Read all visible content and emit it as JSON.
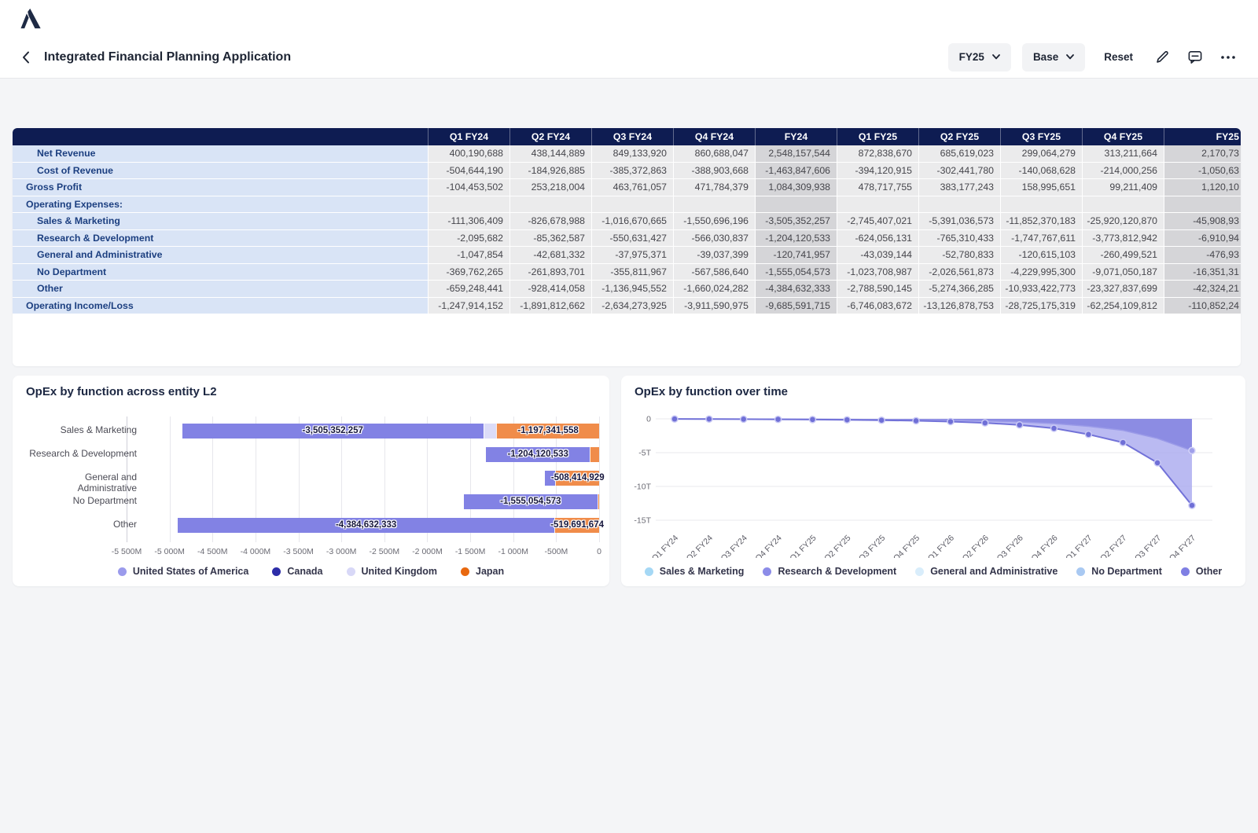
{
  "app": {
    "logo": "anaplan-logo"
  },
  "title_bar": {
    "title": "Integrated Financial Planning Application",
    "period_selector": "FY25",
    "version_selector": "Base",
    "reset_label": "Reset"
  },
  "colors": {
    "header_navy": "#0e1c52",
    "label_blue_bg": "#d9e4f6",
    "label_text": "#1c3f80",
    "quarter_cell_bg": "#ebebec",
    "year_cell_bg": "#d5d5d8",
    "usa_purple": "#8282e4",
    "japan_orange": "#f08c4a",
    "uk_lavender": "#dcdcf8",
    "canada_navy": "#2d2da8",
    "line_purple": "#7272d8"
  },
  "table": {
    "columns": [
      {
        "label": "Q1 FY24",
        "type": "quarter"
      },
      {
        "label": "Q2 FY24",
        "type": "quarter"
      },
      {
        "label": "Q3 FY24",
        "type": "quarter"
      },
      {
        "label": "Q4 FY24",
        "type": "quarter"
      },
      {
        "label": "FY24",
        "type": "year"
      },
      {
        "label": "Q1 FY25",
        "type": "quarter"
      },
      {
        "label": "Q2 FY25",
        "type": "quarter"
      },
      {
        "label": "Q3 FY25",
        "type": "quarter"
      },
      {
        "label": "Q4 FY25",
        "type": "quarter"
      },
      {
        "label": "FY25",
        "type": "year"
      }
    ],
    "rows": [
      {
        "label": "Net Revenue",
        "indent": true,
        "values": [
          "400,190,688",
          "438,144,889",
          "849,133,920",
          "860,688,047",
          "2,548,157,544",
          "872,838,670",
          "685,619,023",
          "299,064,279",
          "313,211,664",
          "2,170,73"
        ]
      },
      {
        "label": "Cost of Revenue",
        "indent": true,
        "values": [
          "-504,644,190",
          "-184,926,885",
          "-385,372,863",
          "-388,903,668",
          "-1,463,847,606",
          "-394,120,915",
          "-302,441,780",
          "-140,068,628",
          "-214,000,256",
          "-1,050,63"
        ]
      },
      {
        "label": "Gross Profit",
        "indent": false,
        "values": [
          "-104,453,502",
          "253,218,004",
          "463,761,057",
          "471,784,379",
          "1,084,309,938",
          "478,717,755",
          "383,177,243",
          "158,995,651",
          "99,211,409",
          "1,120,10"
        ]
      },
      {
        "label": "Operating Expenses:",
        "indent": false,
        "values": [
          "",
          "",
          "",
          "",
          "",
          "",
          "",
          "",
          "",
          ""
        ]
      },
      {
        "label": "Sales & Marketing",
        "indent": true,
        "values": [
          "-111,306,409",
          "-826,678,988",
          "-1,016,670,665",
          "-1,550,696,196",
          "-3,505,352,257",
          "-2,745,407,021",
          "-5,391,036,573",
          "-11,852,370,183",
          "-25,920,120,870",
          "-45,908,93"
        ]
      },
      {
        "label": "Research & Development",
        "indent": true,
        "values": [
          "-2,095,682",
          "-85,362,587",
          "-550,631,427",
          "-566,030,837",
          "-1,204,120,533",
          "-624,056,131",
          "-765,310,433",
          "-1,747,767,611",
          "-3,773,812,942",
          "-6,910,94"
        ]
      },
      {
        "label": "General and Administrative",
        "indent": true,
        "values": [
          "-1,047,854",
          "-42,681,332",
          "-37,975,371",
          "-39,037,399",
          "-120,741,957",
          "-43,039,144",
          "-52,780,833",
          "-120,615,103",
          "-260,499,521",
          "-476,93"
        ]
      },
      {
        "label": "No Department",
        "indent": true,
        "values": [
          "-369,762,265",
          "-261,893,701",
          "-355,811,967",
          "-567,586,640",
          "-1,555,054,573",
          "-1,023,708,987",
          "-2,026,561,873",
          "-4,229,995,300",
          "-9,071,050,187",
          "-16,351,31"
        ]
      },
      {
        "label": "Other",
        "indent": true,
        "values": [
          "-659,248,441",
          "-928,414,058",
          "-1,136,945,552",
          "-1,660,024,282",
          "-4,384,632,333",
          "-2,788,590,145",
          "-5,274,366,285",
          "-10,933,422,773",
          "-23,327,837,699",
          "-42,324,21"
        ]
      },
      {
        "label": "Operating Income/Loss",
        "indent": false,
        "values": [
          "-1,247,914,152",
          "-1,891,812,662",
          "-2,634,273,925",
          "-3,911,590,975",
          "-9,685,591,715",
          "-6,746,083,672",
          "-13,126,878,753",
          "-28,725,175,319",
          "-62,254,109,812",
          "-110,852,24"
        ]
      }
    ]
  },
  "chart_data": [
    {
      "type": "bar",
      "orientation": "horizontal-stacked",
      "title": "OpEx by function across entity L2",
      "xlim": [
        -5500000000,
        0
      ],
      "xticks": [
        {
          "value": -5500000000,
          "label": "-5 500M"
        },
        {
          "value": -5000000000,
          "label": "-5 000M"
        },
        {
          "value": -4500000000,
          "label": "-4 500M"
        },
        {
          "value": -4000000000,
          "label": "-4 000M"
        },
        {
          "value": -3500000000,
          "label": "-3 500M"
        },
        {
          "value": -3000000000,
          "label": "-3 000M"
        },
        {
          "value": -2500000000,
          "label": "-2 500M"
        },
        {
          "value": -2000000000,
          "label": "-2 000M"
        },
        {
          "value": -1500000000,
          "label": "-1 500M"
        },
        {
          "value": -1000000000,
          "label": "-1 000M"
        },
        {
          "value": -500000000,
          "label": "-500M"
        },
        {
          "value": 0,
          "label": "0"
        }
      ],
      "bars": [
        {
          "category": "Sales & Marketing",
          "segments": [
            {
              "series": "United States of America",
              "value": -3505352257,
              "label": "-3,505,352,257",
              "color": "#8282e4"
            },
            {
              "series": "United Kingdom",
              "value": -150000000,
              "label": "",
              "color": "#dcdcf8"
            },
            {
              "series": "Japan",
              "value": -1197341558,
              "label": "-1,197,341,558",
              "color": "#f08c4a"
            }
          ]
        },
        {
          "category": "Research & Development",
          "segments": [
            {
              "series": "United States of America",
              "value": -1204120533,
              "label": "-1,204,120,533",
              "color": "#8282e4"
            },
            {
              "series": "Japan",
              "value": -110000000,
              "label": "",
              "color": "#f08c4a"
            }
          ]
        },
        {
          "category": "General and Administrative",
          "segments": [
            {
              "series": "United States of America",
              "value": -120741957,
              "label": "",
              "color": "#8282e4"
            },
            {
              "series": "Japan",
              "value": -508414929,
              "label": "-508,414,929",
              "color": "#f08c4a"
            }
          ]
        },
        {
          "category": "No Department",
          "segments": [
            {
              "series": "United States of America",
              "value": -1555054573,
              "label": "-1,555,054,573",
              "color": "#8282e4"
            },
            {
              "series": "Japan",
              "value": -20000000,
              "label": "",
              "color": "#f08c4a"
            }
          ]
        },
        {
          "category": "Other",
          "segments": [
            {
              "series": "United States of America",
              "value": -4384632333,
              "label": "-4,384,632,333",
              "color": "#8282e4"
            },
            {
              "series": "Japan",
              "value": -519691674,
              "label": "-519,691,674",
              "color": "#f08c4a"
            }
          ]
        }
      ],
      "legend": [
        {
          "label": "United States of America",
          "color": "#9b9bec"
        },
        {
          "label": "Canada",
          "color": "#2d2da8"
        },
        {
          "label": "United Kingdom",
          "color": "#d8d8f7"
        },
        {
          "label": "Japan",
          "color": "#e8680f"
        }
      ]
    },
    {
      "type": "area",
      "title": "OpEx by function over time",
      "categories": [
        "Q1 FY24",
        "Q2 FY24",
        "Q3 FY24",
        "Q4 FY24",
        "Q1 FY25",
        "Q2 FY25",
        "Q3 FY25",
        "Q4 FY25",
        "Q1 FY26",
        "Q2 FY26",
        "Q3 FY26",
        "Q4 FY26",
        "Q1 FY27",
        "Q2 FY27",
        "Q3 FY27",
        "Q4 FY27"
      ],
      "unit": "trillions",
      "ylim": [
        -15.5,
        0.8
      ],
      "yticks": [
        {
          "value": 0,
          "label": "0"
        },
        {
          "value": -5,
          "label": "-5T"
        },
        {
          "value": -10,
          "label": "-10T"
        },
        {
          "value": -15,
          "label": "-15T"
        }
      ],
      "series": [
        {
          "name": "stack-boundary-upper",
          "values": [
            -0.01,
            -0.015,
            -0.025,
            -0.035,
            -0.05,
            -0.07,
            -0.1,
            -0.14,
            -0.2,
            -0.3,
            -0.45,
            -0.7,
            -1.1,
            -1.7,
            -2.9,
            -4.7
          ],
          "stroke": "#9a9ae8",
          "fill_above": "#7f7fe0"
        },
        {
          "name": "stack-boundary-total",
          "values": [
            -0.02,
            -0.03,
            -0.05,
            -0.07,
            -0.1,
            -0.14,
            -0.2,
            -0.28,
            -0.4,
            -0.6,
            -0.9,
            -1.4,
            -2.3,
            -3.5,
            -6.5,
            -12.8
          ],
          "stroke": "#7272d8",
          "fill_above": "#a9a9ef"
        }
      ],
      "legend": [
        {
          "label": "Sales & Marketing",
          "color": "#a5d8f5"
        },
        {
          "label": "Research & Development",
          "color": "#8c8ce8"
        },
        {
          "label": "General and Administrative",
          "color": "#d9edfb"
        },
        {
          "label": "No Department",
          "color": "#a9c9f2"
        },
        {
          "label": "Other",
          "color": "#7f7fe3"
        }
      ]
    }
  ]
}
